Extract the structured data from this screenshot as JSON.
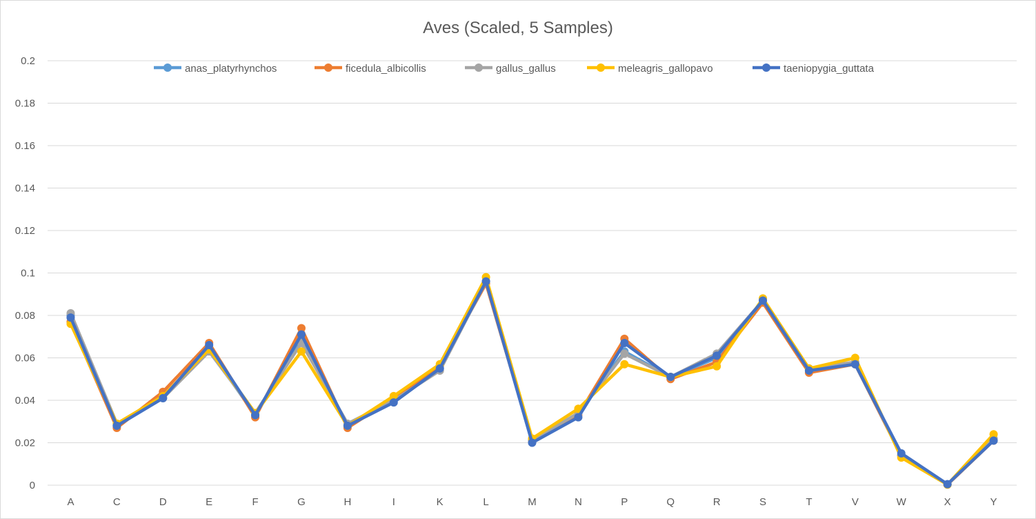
{
  "chart_data": {
    "type": "line",
    "title": "Aves (Scaled, 5 Samples)",
    "xlabel": "",
    "ylabel": "",
    "ylim": [
      0,
      0.2
    ],
    "y_ticks": [
      "0",
      "0.02",
      "0.04",
      "0.06",
      "0.08",
      "0.1",
      "0.12",
      "0.14",
      "0.16",
      "0.18",
      "0.2"
    ],
    "grid": true,
    "legend_position": "top",
    "categories": [
      "A",
      "C",
      "D",
      "E",
      "F",
      "G",
      "H",
      "I",
      "K",
      "L",
      "M",
      "N",
      "P",
      "Q",
      "R",
      "S",
      "T",
      "V",
      "W",
      "X",
      "Y"
    ],
    "series": [
      {
        "name": "anas_platyrhynchos",
        "color": "#5b9bd5",
        "values": [
          0.08,
          0.028,
          0.041,
          0.064,
          0.033,
          0.069,
          0.028,
          0.04,
          0.055,
          0.096,
          0.021,
          0.034,
          0.063,
          0.051,
          0.06,
          0.087,
          0.054,
          0.057,
          0.014,
          0.0003,
          0.021
        ]
      },
      {
        "name": "ficedula_albicollis",
        "color": "#ed7d31",
        "values": [
          0.077,
          0.027,
          0.044,
          0.067,
          0.032,
          0.074,
          0.027,
          0.041,
          0.056,
          0.095,
          0.021,
          0.033,
          0.069,
          0.05,
          0.058,
          0.086,
          0.053,
          0.057,
          0.014,
          0.0003,
          0.021
        ]
      },
      {
        "name": "gallus_gallus",
        "color": "#a5a5a5",
        "values": [
          0.081,
          0.029,
          0.041,
          0.063,
          0.034,
          0.067,
          0.029,
          0.04,
          0.054,
          0.096,
          0.021,
          0.034,
          0.062,
          0.051,
          0.062,
          0.087,
          0.055,
          0.058,
          0.014,
          0.0003,
          0.022
        ]
      },
      {
        "name": "meleagris_gallopavo",
        "color": "#ffc000",
        "values": [
          0.076,
          0.029,
          0.042,
          0.064,
          0.034,
          0.063,
          0.028,
          0.042,
          0.057,
          0.098,
          0.022,
          0.036,
          0.057,
          0.051,
          0.056,
          0.088,
          0.055,
          0.06,
          0.013,
          0.0003,
          0.024
        ]
      },
      {
        "name": "taeniopygia_guttata",
        "color": "#4472c4",
        "values": [
          0.079,
          0.028,
          0.041,
          0.066,
          0.033,
          0.071,
          0.028,
          0.039,
          0.055,
          0.096,
          0.02,
          0.032,
          0.067,
          0.051,
          0.061,
          0.087,
          0.054,
          0.057,
          0.015,
          0.0005,
          0.021
        ]
      }
    ]
  }
}
